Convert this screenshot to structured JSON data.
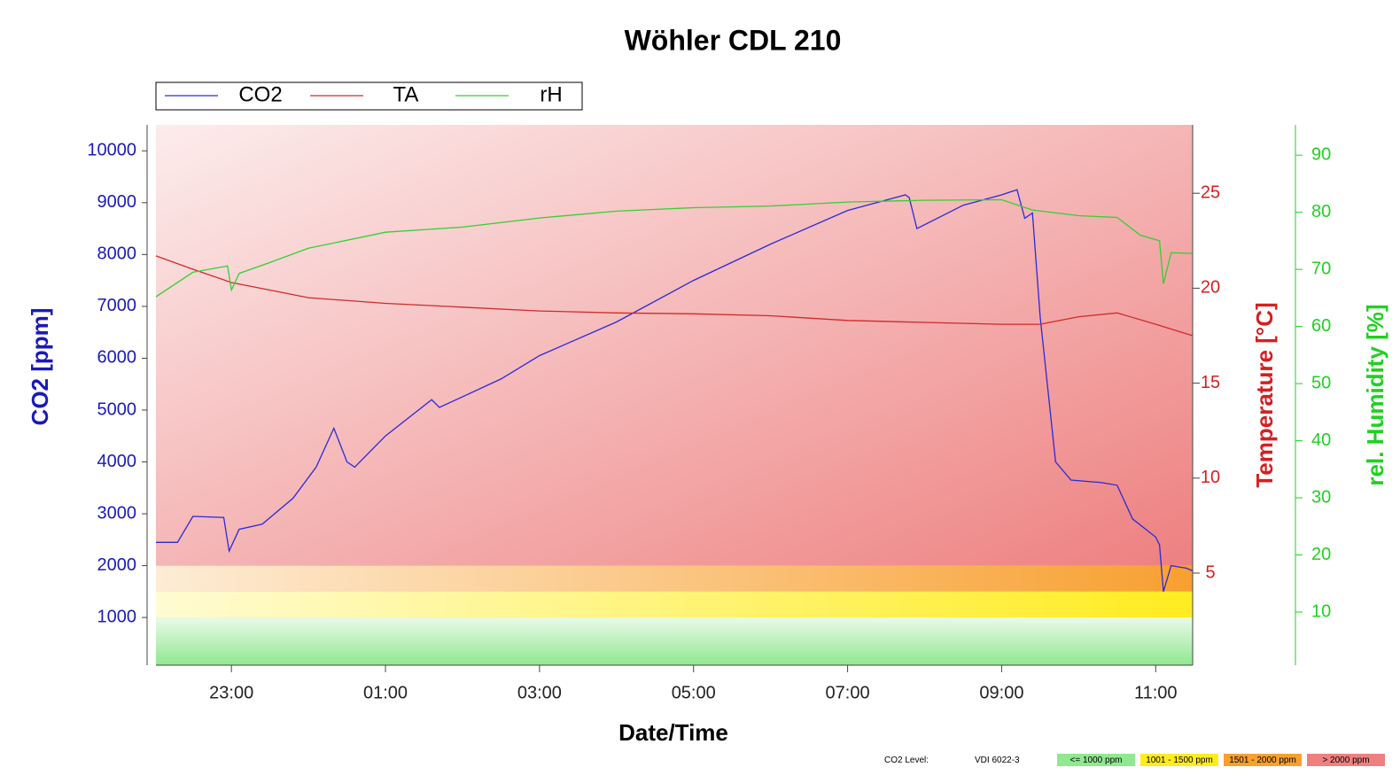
{
  "chart_data": {
    "type": "line",
    "title": "Wöhler CDL 210",
    "x_label": "Date/Time",
    "y_label": "CO2 [ppm]",
    "y2_label": "Temperature [°C]",
    "y3_label": "rel. Humidity [%]",
    "xlim": [
      22.02,
      35.48
    ],
    "xticks": [
      {
        "value": 23,
        "label": "23:00"
      },
      {
        "value": 25,
        "label": "01:00"
      },
      {
        "value": 27,
        "label": "03:00"
      },
      {
        "value": 29,
        "label": "05:00"
      },
      {
        "value": 31,
        "label": "07:00"
      },
      {
        "value": 33,
        "label": "09:00"
      },
      {
        "value": 35,
        "label": "11:00"
      }
    ],
    "ylim": [
      80,
      10500
    ],
    "yticks": [
      1000,
      2000,
      3000,
      4000,
      5000,
      6000,
      7000,
      8000,
      9000,
      10000
    ],
    "y2lim": [
      0.15,
      28.6
    ],
    "y2ticks": [
      5,
      10,
      15,
      20,
      25
    ],
    "y3lim": [
      0.7,
      95.3
    ],
    "y3ticks": [
      10,
      20,
      30,
      40,
      50,
      60,
      70,
      80,
      90
    ],
    "axis_colors": {
      "y": "#1a1ab8",
      "y2": "#d42020",
      "y3": "#22d022"
    },
    "series": [
      {
        "name": "CO2",
        "color": "#2a2ad8",
        "axis": "y",
        "x": [
          22.02,
          22.3,
          22.5,
          22.9,
          22.97,
          23.1,
          23.4,
          23.8,
          24.1,
          24.33,
          24.5,
          24.6,
          25,
          25.6,
          25.7,
          26.5,
          27,
          28,
          29,
          30,
          31,
          31.75,
          31.8,
          31.9,
          32.5,
          33,
          33.2,
          33.3,
          33.4,
          33.5,
          33.7,
          33.9,
          34.3,
          34.5,
          34.7,
          35.0,
          35.05,
          35.1,
          35.2,
          35.4,
          35.48
        ],
        "values": [
          2450,
          2450,
          2950,
          2930,
          2280,
          2700,
          2800,
          3300,
          3900,
          4650,
          4000,
          3900,
          4500,
          5200,
          5050,
          5600,
          6050,
          6700,
          7500,
          8200,
          8850,
          9150,
          9100,
          8500,
          8950,
          9150,
          9250,
          8700,
          8800,
          6800,
          4000,
          3650,
          3600,
          3550,
          2900,
          2550,
          2400,
          1500,
          2000,
          1950,
          1900
        ]
      },
      {
        "name": "TA",
        "color": "#d02a2a",
        "axis": "y2",
        "x": [
          22.02,
          22.5,
          23,
          23.5,
          24,
          25,
          26,
          27,
          28,
          29,
          30,
          31,
          32,
          33,
          33.5,
          34,
          34.5,
          35,
          35.48
        ],
        "values": [
          21.7,
          21.0,
          20.3,
          19.9,
          19.5,
          19.2,
          19.0,
          18.8,
          18.7,
          18.65,
          18.55,
          18.3,
          18.2,
          18.1,
          18.1,
          18.5,
          18.7,
          18.1,
          17.5
        ]
      },
      {
        "name": "rH",
        "color": "#33d033",
        "axis": "y3",
        "x": [
          22.02,
          22.5,
          22.95,
          23.0,
          23.1,
          23.5,
          24,
          25,
          26,
          27,
          28,
          29,
          30,
          31,
          32,
          33,
          33.4,
          34,
          34.5,
          34.8,
          35.05,
          35.1,
          35.2,
          35.48
        ],
        "values": [
          65.2,
          69.5,
          70.6,
          66.4,
          69.3,
          71.2,
          73.7,
          76.5,
          77.4,
          79,
          80.2,
          80.8,
          81.1,
          81.8,
          82.1,
          82.2,
          80.4,
          79.4,
          79.1,
          76,
          75,
          67.5,
          72.9,
          72.8
        ]
      }
    ],
    "bands_title": "CO2 Level:",
    "bands_standard": "VDI 6022-3",
    "bands": [
      {
        "label": "<= 1000 ppm",
        "color": "#90e890",
        "max": 1000
      },
      {
        "label": "1001 - 1500 ppm",
        "color": "#ffec20",
        "max": 1500
      },
      {
        "label": "1501 - 2000 ppm",
        "color": "#f8a030",
        "max": 2000
      },
      {
        "label": "> 2000 ppm",
        "color": "#ee8080"
      }
    ]
  }
}
